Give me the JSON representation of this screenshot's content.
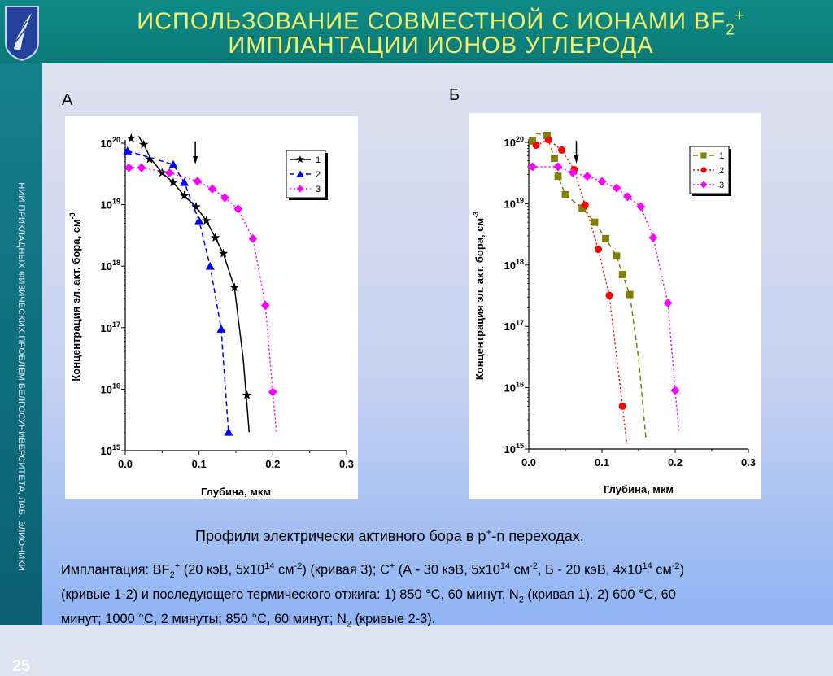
{
  "header": {
    "title_line1_main": "ИСПОЛЬЗОВАНИЕ СОВМЕСТНОЙ С ИОНАМИ BF",
    "title_line1_sub": "2",
    "title_line1_sup": "+",
    "title_line2": "ИМПЛАНТАЦИИ ИОНОВ УГЛЕРОДА"
  },
  "sidebar": {
    "vertical_text": "НИИ ПРИКЛАДНЫХ ФИЗИЧЕСКИХ ПРОБЛЕМ БЕЛГОСУНИВЕРСИТЕТА, ЛАБ. ЭЛИОНИКИ",
    "page_number": "25"
  },
  "panels": {
    "a_label": "А",
    "b_label": "Б"
  },
  "caption": {
    "text_main": "Профили электрически активного бора в p",
    "text_sup": "+",
    "text_rest": "-n переходах."
  },
  "description": {
    "line1_parts": [
      "Имплантация: BF",
      "2",
      "+",
      " (20 кэВ, 5x10",
      "14",
      " см",
      "-2",
      ") (кривая 3); С",
      "+",
      " (А - 30 кэВ, 5x10",
      "14",
      " см",
      "-2",
      ", Б - 20 кэВ, 4x10",
      "14",
      " см",
      "-2",
      ")"
    ],
    "line2_text": "(кривые 1-2) и последующего термического отжига: 1) 850 °C, 60 минут, N",
    "line2_sub": "2",
    "line2_end": " (кривая 1). 2) 600 °C, 60",
    "line3_text": "минут; 1000 °C, 2 минуты; 850 °C, 60 минут; N",
    "line3_sub": "2",
    "line3_end": " (кривые 2-3)."
  },
  "chart_data": [
    {
      "type": "scatter",
      "panel": "А",
      "xlabel": "Глубина, мкм",
      "ylabel": "Концентрация эл. акт. бора, см",
      "ylabel_sup": "-3",
      "xlim": [
        0,
        0.3
      ],
      "ylim": [
        1000000000000000.0,
        1e+20
      ],
      "yscale": "log",
      "x_ticks": [
        "0.0",
        "0.1",
        "0.2",
        "0.3"
      ],
      "y_ticks": [
        {
          "base": "10",
          "exp": "15",
          "v": 15
        },
        {
          "base": "10",
          "exp": "16",
          "v": 16
        },
        {
          "base": "10",
          "exp": "17",
          "v": 17
        },
        {
          "base": "10",
          "exp": "18",
          "v": 18
        },
        {
          "base": "10",
          "exp": "19",
          "v": 19
        },
        {
          "base": "10",
          "exp": "20",
          "v": 20
        }
      ],
      "legend": [
        "1",
        "2",
        "3"
      ],
      "legend_position": "top-right",
      "arrow_x": 0.095,
      "series": [
        {
          "name": "1",
          "color": "#000000",
          "marker": "star",
          "line": "solid",
          "x": [
            0.008,
            0.025,
            0.033,
            0.05,
            0.065,
            0.08,
            0.096,
            0.11,
            0.122,
            0.133,
            0.148,
            0.165
          ],
          "y": [
            1.2e+20,
            9.5e+19,
            5.5e+19,
            3.3e+19,
            2.3e+19,
            1.4e+19,
            9.2e+18,
            5.5e+18,
            2.9e+18,
            1.6e+18,
            4.5e+17,
            8000000000000000.0
          ],
          "curve_x": [
            0.018,
            0.025,
            0.035,
            0.05,
            0.065,
            0.08,
            0.096,
            0.11,
            0.122,
            0.133,
            0.148,
            0.16,
            0.168
          ],
          "curve_y": [
            1.3e+20,
            9.5e+19,
            5.5e+19,
            3.3e+19,
            2.3e+19,
            1.4e+19,
            9.2e+18,
            5.5e+18,
            2.9e+18,
            1.6e+18,
            4.5e+17,
            3e+16,
            2000000000000000.0
          ]
        },
        {
          "name": "2",
          "color": "#0000ff",
          "marker": "triangle",
          "line": "dashed",
          "x": [
            0.003,
            0.065,
            0.08,
            0.1,
            0.115,
            0.13,
            0.14
          ],
          "y": [
            7.5e+19,
            4.5e+19,
            2.3e+19,
            5.5e+18,
            1e+18,
            9.5e+16,
            2000000000000000.0
          ],
          "curve_x": [
            0.003,
            0.065,
            0.08,
            0.1,
            0.115,
            0.13,
            0.14
          ],
          "curve_y": [
            7.5e+19,
            4.5e+19,
            2.3e+19,
            5.5e+18,
            1e+18,
            9.5e+16,
            2000000000000000.0
          ]
        },
        {
          "name": "3",
          "color": "#ff00ff",
          "marker": "diamond",
          "line": "dotted",
          "x": [
            0.005,
            0.022,
            0.06,
            0.098,
            0.118,
            0.135,
            0.153,
            0.173,
            0.19,
            0.2
          ],
          "y": [
            4e+19,
            4e+19,
            3.3e+19,
            2.4e+19,
            1.8e+19,
            1.3e+19,
            8.5e+18,
            2.8e+18,
            2.3e+17,
            9000000000000000.0
          ],
          "curve_x": [
            0.005,
            0.022,
            0.06,
            0.098,
            0.118,
            0.135,
            0.153,
            0.173,
            0.19,
            0.2,
            0.205
          ],
          "curve_y": [
            4e+19,
            4e+19,
            3.3e+19,
            2.4e+19,
            1.8e+19,
            1.3e+19,
            8.5e+18,
            2.8e+18,
            2.3e+17,
            9000000000000000.0,
            2000000000000000.0
          ]
        }
      ]
    },
    {
      "type": "scatter",
      "panel": "Б",
      "xlabel": "Глубина, мкм",
      "ylabel": "Концентрация эл. акт. бора, см",
      "ylabel_sup": "-3",
      "xlim": [
        0,
        0.3
      ],
      "ylim": [
        1000000000000000.0,
        1e+20
      ],
      "yscale": "log",
      "x_ticks": [
        "0.0",
        "0.1",
        "0.2",
        "0.3"
      ],
      "y_ticks": [
        {
          "base": "10",
          "exp": "15",
          "v": 15
        },
        {
          "base": "10",
          "exp": "16",
          "v": 16
        },
        {
          "base": "10",
          "exp": "17",
          "v": 17
        },
        {
          "base": "10",
          "exp": "18",
          "v": 18
        },
        {
          "base": "10",
          "exp": "19",
          "v": 19
        },
        {
          "base": "10",
          "exp": "20",
          "v": 20
        }
      ],
      "legend": [
        "1",
        "2",
        "3"
      ],
      "legend_position": "top-right",
      "arrow_x": 0.065,
      "series": [
        {
          "name": "1",
          "color": "#808000",
          "marker": "square",
          "line": "dashed",
          "x": [
            0.005,
            0.025,
            0.035,
            0.04,
            0.05,
            0.073,
            0.09,
            0.105,
            0.12,
            0.128,
            0.138
          ],
          "y": [
            1.05e+20,
            1.3e+20,
            5.5e+19,
            2.8e+19,
            1.4e+19,
            8.5e+18,
            5e+18,
            2.7e+18,
            1.4e+18,
            7e+17,
            3.3e+17
          ],
          "curve_x": [
            0.01,
            0.025,
            0.035,
            0.04,
            0.05,
            0.073,
            0.09,
            0.105,
            0.12,
            0.128,
            0.138,
            0.15,
            0.16
          ],
          "curve_y": [
            1.4e+20,
            1.3e+20,
            5.5e+19,
            2.8e+19,
            1.4e+19,
            8.5e+18,
            5e+18,
            2.7e+18,
            1.4e+18,
            7e+17,
            3.3e+17,
            3e+16,
            1500000000000000.0
          ]
        },
        {
          "name": "2",
          "color": "#ff0000",
          "marker": "circle",
          "line": "dotted",
          "x": [
            0.01,
            0.027,
            0.045,
            0.062,
            0.077,
            0.095,
            0.11,
            0.128
          ],
          "y": [
            9e+19,
            1.1e+20,
            7.5e+19,
            3.6e+19,
            9.5e+18,
            1.8e+18,
            3.2e+17,
            5000000000000000.0
          ],
          "curve_x": [
            0.01,
            0.027,
            0.045,
            0.062,
            0.077,
            0.095,
            0.11,
            0.128,
            0.134
          ],
          "curve_y": [
            9e+19,
            1.1e+20,
            7.5e+19,
            3.6e+19,
            9.5e+18,
            1.8e+18,
            3.2e+17,
            5000000000000000.0,
            1200000000000000.0
          ]
        },
        {
          "name": "3",
          "color": "#ff00ff",
          "marker": "diamond",
          "line": "dotted",
          "x": [
            0.005,
            0.04,
            0.06,
            0.08,
            0.1,
            0.12,
            0.135,
            0.153,
            0.17,
            0.19,
            0.2
          ],
          "y": [
            4e+19,
            4e+19,
            3.2e+19,
            2.8e+19,
            2.3e+19,
            1.8e+19,
            1.3e+19,
            9e+18,
            2.8e+18,
            2.4e+17,
            9000000000000000.0
          ],
          "curve_x": [
            0.005,
            0.04,
            0.06,
            0.08,
            0.1,
            0.12,
            0.135,
            0.153,
            0.17,
            0.19,
            0.2,
            0.205
          ],
          "curve_y": [
            4e+19,
            4e+19,
            3.2e+19,
            2.8e+19,
            2.3e+19,
            1.8e+19,
            1.3e+19,
            9e+18,
            2.8e+18,
            2.4e+17,
            9000000000000000.0,
            2000000000000000.0
          ]
        }
      ]
    }
  ]
}
